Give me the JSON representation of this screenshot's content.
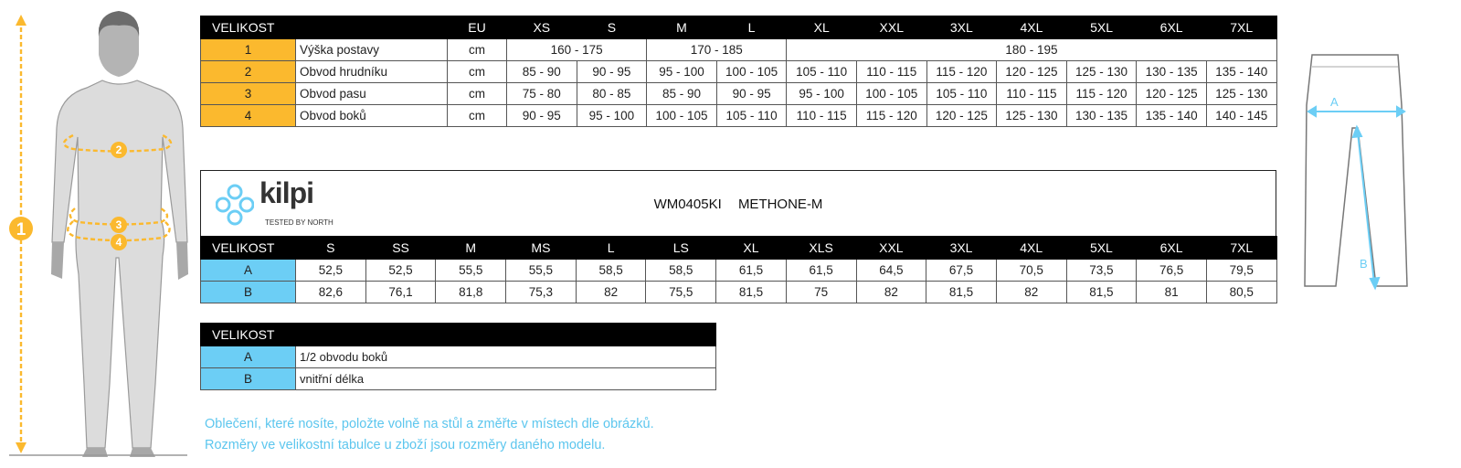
{
  "colors": {
    "accent_orange": "#fbb92e",
    "accent_blue": "#6ccef5",
    "note_text": "#5cc6ee"
  },
  "body_table": {
    "header": [
      "VELIKOST",
      "EU",
      "XS",
      "S",
      "M",
      "L",
      "XL",
      "XXL",
      "3XL",
      "4XL",
      "5XL",
      "6XL",
      "7XL"
    ],
    "rows": [
      {
        "num": "1",
        "label": "Výška postavy",
        "unit": "cm",
        "cells": [
          {
            "v": "160 - 175",
            "span": 2
          },
          {
            "v": "170 - 185",
            "span": 2
          },
          {
            "v": "180 - 195",
            "span": 7
          }
        ]
      },
      {
        "num": "2",
        "label": "Obvod hrudníku",
        "unit": "cm",
        "cells": [
          "85 - 90",
          "90 - 95",
          "95 - 100",
          "100 - 105",
          "105 - 110",
          "110 - 115",
          "115 - 120",
          "120 - 125",
          "125 - 130",
          "130 - 135",
          "135 - 140"
        ]
      },
      {
        "num": "3",
        "label": "Obvod pasu",
        "unit": "cm",
        "cells": [
          "75 - 80",
          "80 - 85",
          "85 - 90",
          "90 - 95",
          "95 - 100",
          "100 - 105",
          "105 - 110",
          "110 - 115",
          "115 - 120",
          "120 - 125",
          "125 - 130"
        ]
      },
      {
        "num": "4",
        "label": "Obvod boků",
        "unit": "cm",
        "cells": [
          "90 - 95",
          "95 - 100",
          "100 - 105",
          "105 - 110",
          "110 - 115",
          "115 - 120",
          "120 - 125",
          "125 - 130",
          "130 - 135",
          "135 - 140",
          "140 - 145"
        ]
      }
    ]
  },
  "brand": {
    "logo_text": "kilpi",
    "tagline": "Tested by North"
  },
  "product": {
    "code": "WM0405KI",
    "name": "METHONE-M"
  },
  "product_table": {
    "header": [
      "VELIKOST",
      "S",
      "SS",
      "M",
      "MS",
      "L",
      "LS",
      "XL",
      "XLS",
      "XXL",
      "3XL",
      "4XL",
      "5XL",
      "6XL",
      "7XL"
    ],
    "rows": [
      {
        "key": "A",
        "cells": [
          "52,5",
          "52,5",
          "55,5",
          "55,5",
          "58,5",
          "58,5",
          "61,5",
          "61,5",
          "64,5",
          "67,5",
          "70,5",
          "73,5",
          "76,5",
          "79,5"
        ]
      },
      {
        "key": "B",
        "cells": [
          "82,6",
          "76,1",
          "81,8",
          "75,3",
          "82",
          "75,5",
          "81,5",
          "75",
          "82",
          "81,5",
          "82",
          "81,5",
          "81",
          "80,5"
        ]
      }
    ]
  },
  "legend_table": {
    "header": "VELIKOST",
    "rows": [
      {
        "key": "A",
        "desc": "1/2 obvodu boků"
      },
      {
        "key": "B",
        "desc": "vnitřní délka"
      }
    ]
  },
  "notes": [
    "Oblečení, které nosíte, položte volně na stůl a změřte v místech dle obrázků.",
    "Rozměry ve velikostní tabulce u zboží jsou rozměry daného modelu."
  ],
  "figure": {
    "markers": [
      "1",
      "2",
      "3",
      "4"
    ],
    "pants_markers": [
      "A",
      "B"
    ]
  }
}
